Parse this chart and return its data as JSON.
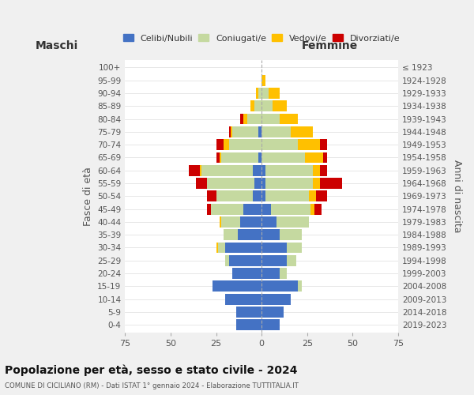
{
  "age_groups": [
    "0-4",
    "5-9",
    "10-14",
    "15-19",
    "20-24",
    "25-29",
    "30-34",
    "35-39",
    "40-44",
    "45-49",
    "50-54",
    "55-59",
    "60-64",
    "65-69",
    "70-74",
    "75-79",
    "80-84",
    "85-89",
    "90-94",
    "95-99",
    "100+"
  ],
  "birth_years": [
    "2019-2023",
    "2014-2018",
    "2009-2013",
    "2004-2008",
    "1999-2003",
    "1994-1998",
    "1989-1993",
    "1984-1988",
    "1979-1983",
    "1974-1978",
    "1969-1973",
    "1964-1968",
    "1959-1963",
    "1954-1958",
    "1949-1953",
    "1944-1948",
    "1939-1943",
    "1934-1938",
    "1929-1933",
    "1924-1928",
    "≤ 1923"
  ],
  "male": {
    "celibi": [
      14,
      14,
      20,
      27,
      16,
      18,
      20,
      13,
      12,
      10,
      5,
      4,
      5,
      2,
      0,
      2,
      0,
      0,
      0,
      0,
      0
    ],
    "coniugati": [
      0,
      0,
      0,
      0,
      0,
      2,
      4,
      8,
      10,
      18,
      20,
      26,
      28,
      20,
      18,
      14,
      8,
      4,
      2,
      0,
      0
    ],
    "vedovi": [
      0,
      0,
      0,
      0,
      0,
      0,
      1,
      0,
      1,
      0,
      0,
      0,
      1,
      1,
      3,
      1,
      2,
      2,
      1,
      0,
      0
    ],
    "divorziati": [
      0,
      0,
      0,
      0,
      0,
      0,
      0,
      0,
      0,
      2,
      5,
      6,
      6,
      2,
      4,
      1,
      2,
      0,
      0,
      0,
      0
    ]
  },
  "female": {
    "nubili": [
      10,
      12,
      16,
      20,
      10,
      14,
      14,
      10,
      8,
      5,
      2,
      2,
      2,
      0,
      0,
      0,
      0,
      0,
      0,
      0,
      0
    ],
    "coniugate": [
      0,
      0,
      0,
      2,
      4,
      5,
      8,
      12,
      18,
      22,
      24,
      26,
      26,
      24,
      20,
      16,
      10,
      6,
      4,
      0,
      0
    ],
    "vedove": [
      0,
      0,
      0,
      0,
      0,
      0,
      0,
      0,
      0,
      2,
      4,
      4,
      4,
      10,
      12,
      12,
      10,
      8,
      6,
      2,
      0
    ],
    "divorziate": [
      0,
      0,
      0,
      0,
      0,
      0,
      0,
      0,
      0,
      4,
      6,
      12,
      4,
      2,
      4,
      0,
      0,
      0,
      0,
      0,
      0
    ]
  },
  "colors": {
    "celibi": "#4472c4",
    "coniugati": "#c5d9a0",
    "vedovi": "#ffc000",
    "divorziati": "#cc0000"
  },
  "xlim": 75,
  "title": "Popolazione per età, sesso e stato civile - 2024",
  "subtitle": "COMUNE DI CICILIANO (RM) - Dati ISTAT 1° gennaio 2024 - Elaborazione TUTTITALIA.IT",
  "xlabel_left": "Maschi",
  "xlabel_right": "Femmine",
  "ylabel": "Fasce di età",
  "ylabel_right": "Anni di nascita",
  "legend_labels": [
    "Celibi/Nubili",
    "Coniugati/e",
    "Vedovi/e",
    "Divorziati/e"
  ],
  "bg_color": "#f0f0f0",
  "plot_bg": "#ffffff"
}
